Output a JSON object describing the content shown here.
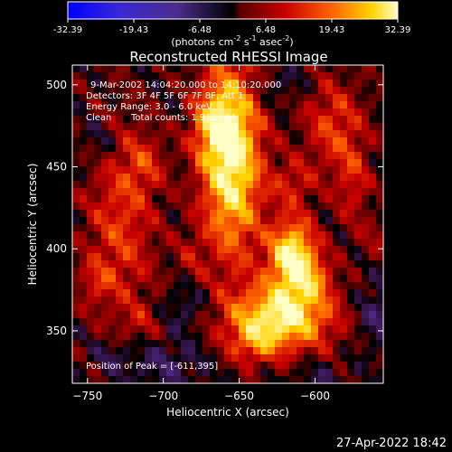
{
  "chart_data": {
    "type": "heatmap",
    "title": "Reconstructed RHESSI Image",
    "xlabel": "Heliocentric X (arcsec)",
    "ylabel": "Heliocentric Y (arcsec)",
    "xlim": [
      -760,
      -555
    ],
    "ylim": [
      318,
      512
    ],
    "x_ticks": [
      -750,
      -700,
      -650,
      -600
    ],
    "y_ticks": [
      350,
      400,
      450,
      500
    ],
    "colorbar": {
      "range": [
        -32.39,
        32.39
      ],
      "ticks": [
        "-32.39",
        "-19.43",
        "-6.48",
        "6.48",
        "19.43",
        "32.39"
      ],
      "tick_values": [
        -32.39,
        -19.43,
        -6.48,
        6.48,
        19.43,
        32.39
      ],
      "label_prefix": "(photons cm",
      "label_exp1": "-2",
      "label_mid1": " s",
      "label_exp2": "-1",
      "label_mid2": " asec",
      "label_exp3": "-2",
      "label_suffix": ")"
    },
    "annotations": {
      "time_range": "9-Mar-2002 14:04:20.000 to 14:10:20.000",
      "detectors": "Detectors: 3F 4F 5F 6F 7F 8F, Att 1",
      "energy": "Energy Range: 3.0 - 6.0 keV",
      "clean": "Clean",
      "total_counts": "Total counts: 1.91e+04",
      "peak": "Position of Peak = [-611,395]"
    },
    "peak_position": [
      -611,
      395
    ],
    "blobs": [
      {
        "x": -655,
        "y": 455,
        "sx": 14,
        "sy": 42,
        "a": 30
      },
      {
        "x": -668,
        "y": 475,
        "sx": 10,
        "sy": 16,
        "a": 12
      },
      {
        "x": -615,
        "y": 395,
        "sx": 11,
        "sy": 16,
        "a": 30
      },
      {
        "x": -622,
        "y": 358,
        "sx": 24,
        "sy": 14,
        "a": 28
      },
      {
        "x": -600,
        "y": 382,
        "sx": 9,
        "sy": 10,
        "a": 10
      },
      {
        "x": -640,
        "y": 342,
        "sx": 12,
        "sy": 9,
        "a": 10
      },
      {
        "x": -728,
        "y": 415,
        "sx": 16,
        "sy": 42,
        "a": 12
      },
      {
        "x": -712,
        "y": 452,
        "sx": 9,
        "sy": 12,
        "a": 8
      },
      {
        "x": -745,
        "y": 380,
        "sx": 8,
        "sy": 9,
        "a": 7
      },
      {
        "x": -715,
        "y": 355,
        "sx": 9,
        "sy": 8,
        "a": 5
      },
      {
        "x": -588,
        "y": 475,
        "sx": 14,
        "sy": 20,
        "a": 12
      },
      {
        "x": -575,
        "y": 440,
        "sx": 8,
        "sy": 18,
        "a": 9
      },
      {
        "x": -615,
        "y": 440,
        "sx": 10,
        "sy": 10,
        "a": 9
      },
      {
        "x": -560,
        "y": 405,
        "sx": 8,
        "sy": 9,
        "a": 5
      },
      {
        "x": -682,
        "y": 395,
        "sx": 7,
        "sy": 12,
        "a": 5
      },
      {
        "x": -742,
        "y": 465,
        "sx": 8,
        "sy": 10,
        "a": -6
      },
      {
        "x": -700,
        "y": 330,
        "sx": 20,
        "sy": 10,
        "a": -7
      },
      {
        "x": -685,
        "y": 365,
        "sx": 10,
        "sy": 10,
        "a": -6
      },
      {
        "x": -560,
        "y": 360,
        "sx": 9,
        "sy": 14,
        "a": -8
      },
      {
        "x": -625,
        "y": 500,
        "sx": 12,
        "sy": 8,
        "a": -5
      },
      {
        "x": -735,
        "y": 335,
        "sx": 9,
        "sy": 8,
        "a": -5
      },
      {
        "x": -598,
        "y": 322,
        "sx": 12,
        "sy": 6,
        "a": -5
      }
    ]
  },
  "footer": {
    "timestamp": "27-Apr-2022 18:42"
  }
}
